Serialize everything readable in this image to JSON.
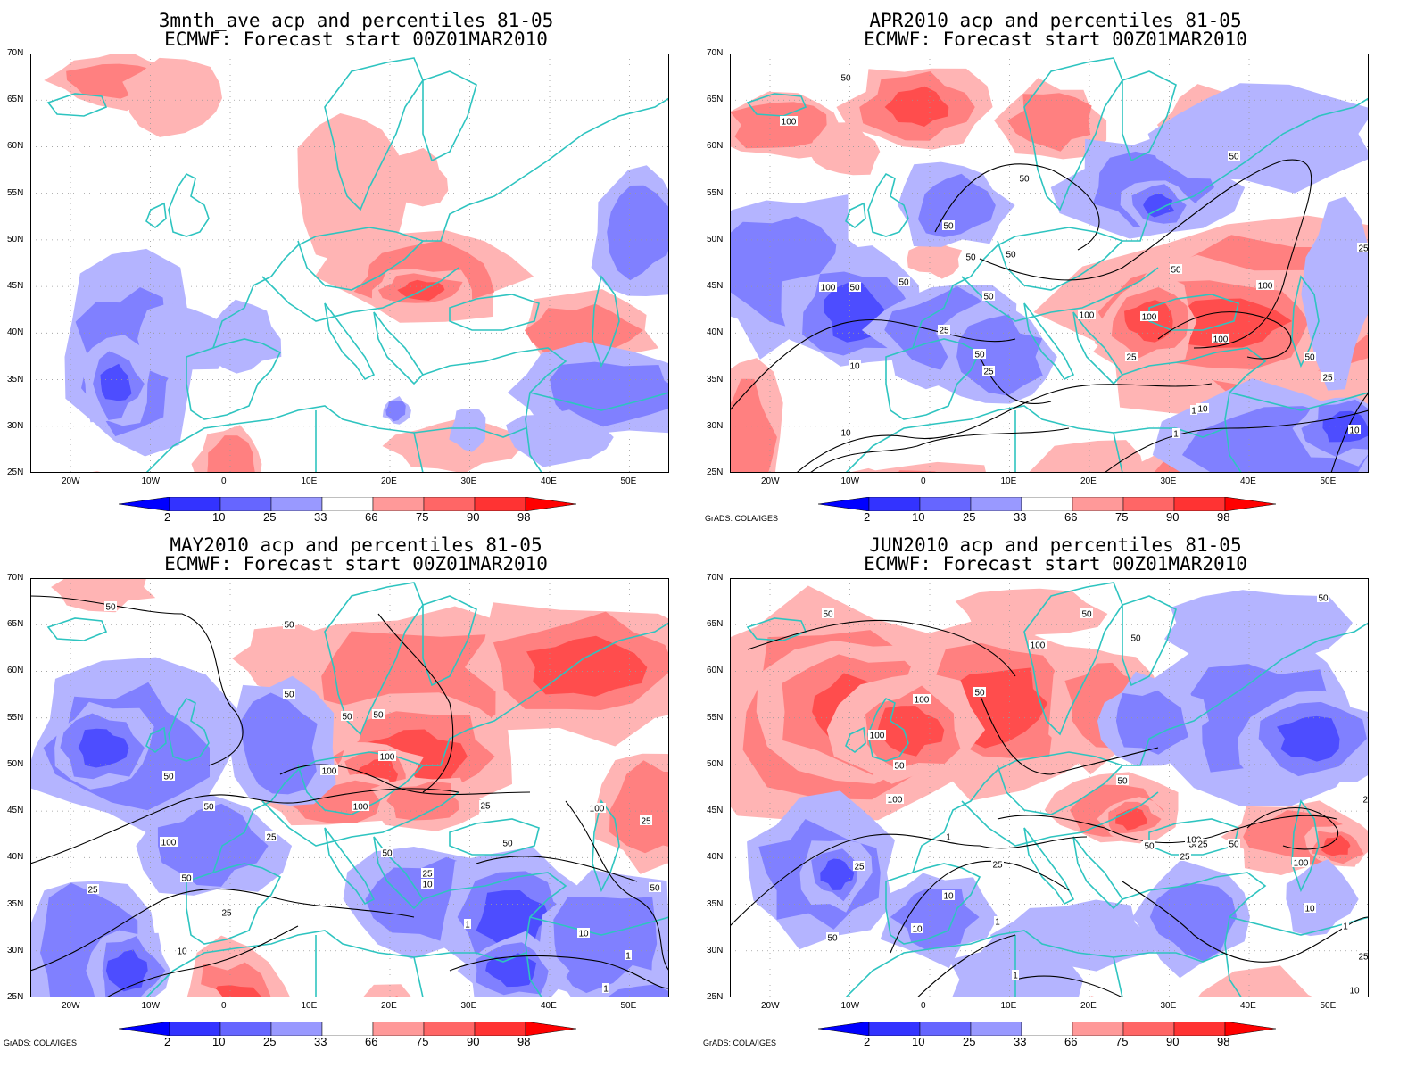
{
  "panels": [
    {
      "title_line1": "3mnth_ave acp and percentiles 81-05",
      "title_line2": "ECMWF: Forecast start 00Z01MAR2010",
      "credit": "",
      "contours": false
    },
    {
      "title_line1": "APR2010 acp and percentiles 81-05",
      "title_line2": "ECMWF: Forecast start 00Z01MAR2010",
      "credit": "GrADS: COLA/IGES",
      "contours": true,
      "contour_labels": [
        "50",
        "100",
        "50",
        "50",
        "50",
        "50",
        "100",
        "50",
        "50",
        "50",
        "50",
        "100",
        "25",
        "50",
        "100",
        "100",
        "100",
        "50",
        "25",
        "25",
        "10",
        "10",
        "50",
        "25",
        "25",
        "10",
        "1",
        "10",
        "1"
      ]
    },
    {
      "title_line1": "MAY2010 acp and percentiles 81-05",
      "title_line2": "ECMWF: Forecast start 00Z01MAR2010",
      "credit": "GrADS: COLA/IGES",
      "contours": true,
      "contour_labels": [
        "50",
        "50",
        "50",
        "50",
        "50",
        "100",
        "100",
        "100",
        "50",
        "50",
        "25",
        "100",
        "25",
        "50",
        "50",
        "50",
        "25",
        "10",
        "25",
        "25",
        "10",
        "1",
        "50",
        "100",
        "25",
        "10",
        "1",
        "1"
      ]
    },
    {
      "title_line1": "JUN2010 acp and percentiles 81-05",
      "title_line2": "ECMWF: Forecast start 00Z01MAR2010",
      "credit": "GrADS: COLA/IGES",
      "contours": true,
      "contour_labels": [
        "50",
        "50",
        "50",
        "100",
        "50",
        "50",
        "100",
        "100",
        "50",
        "50",
        "100",
        "50",
        "50",
        "100",
        "25",
        "25",
        "50",
        "25",
        "100",
        "25",
        "10",
        "10",
        "10",
        "1",
        "1",
        "1",
        "1",
        "25",
        "10",
        "25",
        "50"
      ]
    }
  ],
  "axes": {
    "lat_labels": [
      "70N",
      "65N",
      "60N",
      "55N",
      "50N",
      "45N",
      "40N",
      "35N",
      "30N",
      "25N"
    ],
    "lon_labels": [
      "20W",
      "10W",
      "0",
      "10E",
      "20E",
      "30E",
      "40E",
      "50E"
    ]
  },
  "colorbar": {
    "labels": [
      "2",
      "10",
      "25",
      "33",
      "66",
      "75",
      "90",
      "98"
    ],
    "colors": [
      "#0000ff",
      "#3333ff",
      "#6666ff",
      "#9999ff",
      "#ffffff",
      "#ff9999",
      "#ff6666",
      "#ff3333",
      "#ff0000"
    ]
  },
  "colors": {
    "coast": "#2ec4c0",
    "contour": "#000000",
    "blue_scale": [
      "#b4b4ff",
      "#8080ff",
      "#4d4dff",
      "#1a1aff"
    ],
    "red_scale": [
      "#ffb4b4",
      "#ff8080",
      "#ff4d4d",
      "#ff1a1a"
    ]
  }
}
